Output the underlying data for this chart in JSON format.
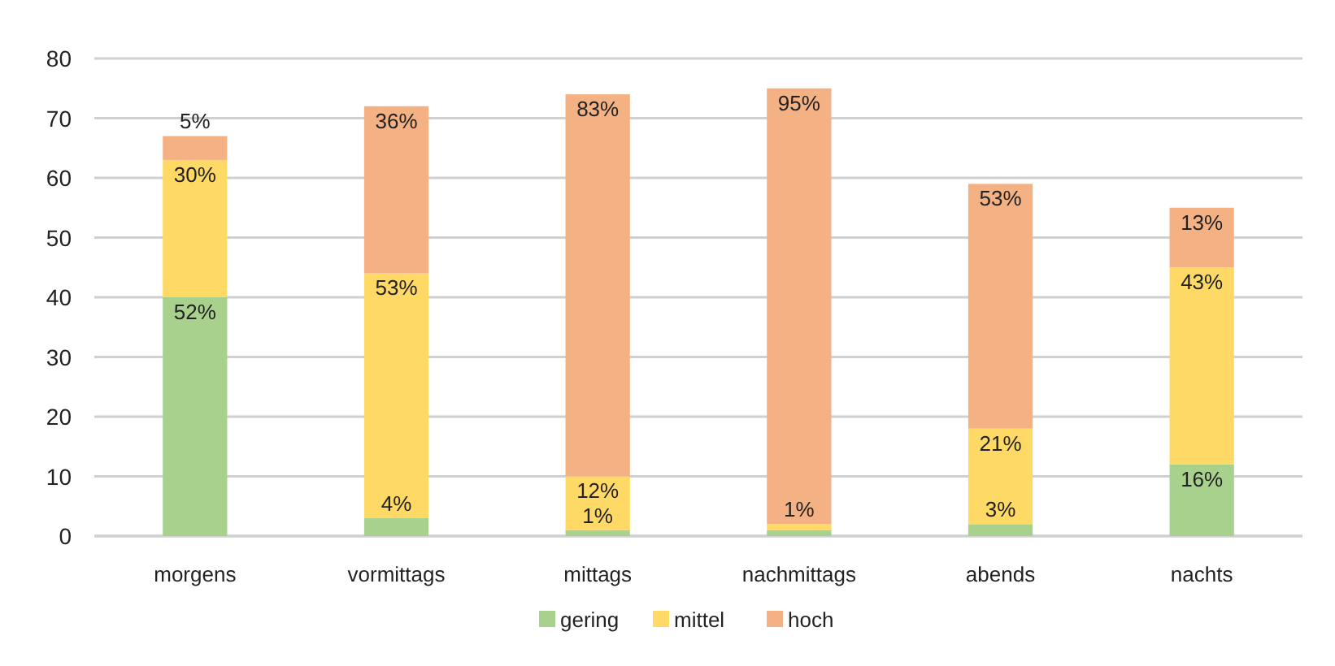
{
  "chart_data": {
    "type": "bar",
    "stacked": true,
    "categories": [
      "morgens",
      "vormittags",
      "mittags",
      "nachmittags",
      "abends",
      "nachts"
    ],
    "series": [
      {
        "name": "gering",
        "color": "#a9d18e",
        "values": [
          40,
          3,
          1,
          1,
          2,
          12
        ]
      },
      {
        "name": "mittel",
        "color": "#ffd966",
        "values": [
          23,
          41,
          9,
          1,
          16,
          33
        ]
      },
      {
        "name": "hoch",
        "color": "#f4b183",
        "values": [
          4,
          28,
          64,
          73,
          41,
          10
        ]
      }
    ],
    "annotations": [
      {
        "text": "52%",
        "x": "morgens",
        "y": 40
      },
      {
        "text": "30%",
        "x": "morgens",
        "y": 63
      },
      {
        "text": "5%",
        "x": "morgens",
        "y": 67
      },
      {
        "text": "4%",
        "x": "vormittags",
        "y": 3
      },
      {
        "text": "53%",
        "x": "vormittags",
        "y": 44
      },
      {
        "text": "36%",
        "x": "vormittags",
        "y": 72
      },
      {
        "text": "1%",
        "x": "mittags",
        "y": 1
      },
      {
        "text": "12%",
        "x": "mittags",
        "y": 10
      },
      {
        "text": "83%",
        "x": "mittags",
        "y": 74
      },
      {
        "text": "1%",
        "x": "nachmittags",
        "y": 2
      },
      {
        "text": "95%",
        "x": "nachmittags",
        "y": 75
      },
      {
        "text": "3%",
        "x": "abends",
        "y": 2
      },
      {
        "text": "21%",
        "x": "abends",
        "y": 18
      },
      {
        "text": "53%",
        "x": "abends",
        "y": 59
      },
      {
        "text": "16%",
        "x": "nachts",
        "y": 12
      },
      {
        "text": "43%",
        "x": "nachts",
        "y": 45
      },
      {
        "text": "13%",
        "x": "nachts",
        "y": 55
      }
    ],
    "ylim": [
      0,
      80
    ],
    "yticks": [
      0,
      10,
      20,
      30,
      40,
      50,
      60,
      70,
      80
    ],
    "grid": "y",
    "legend": "bottom"
  }
}
